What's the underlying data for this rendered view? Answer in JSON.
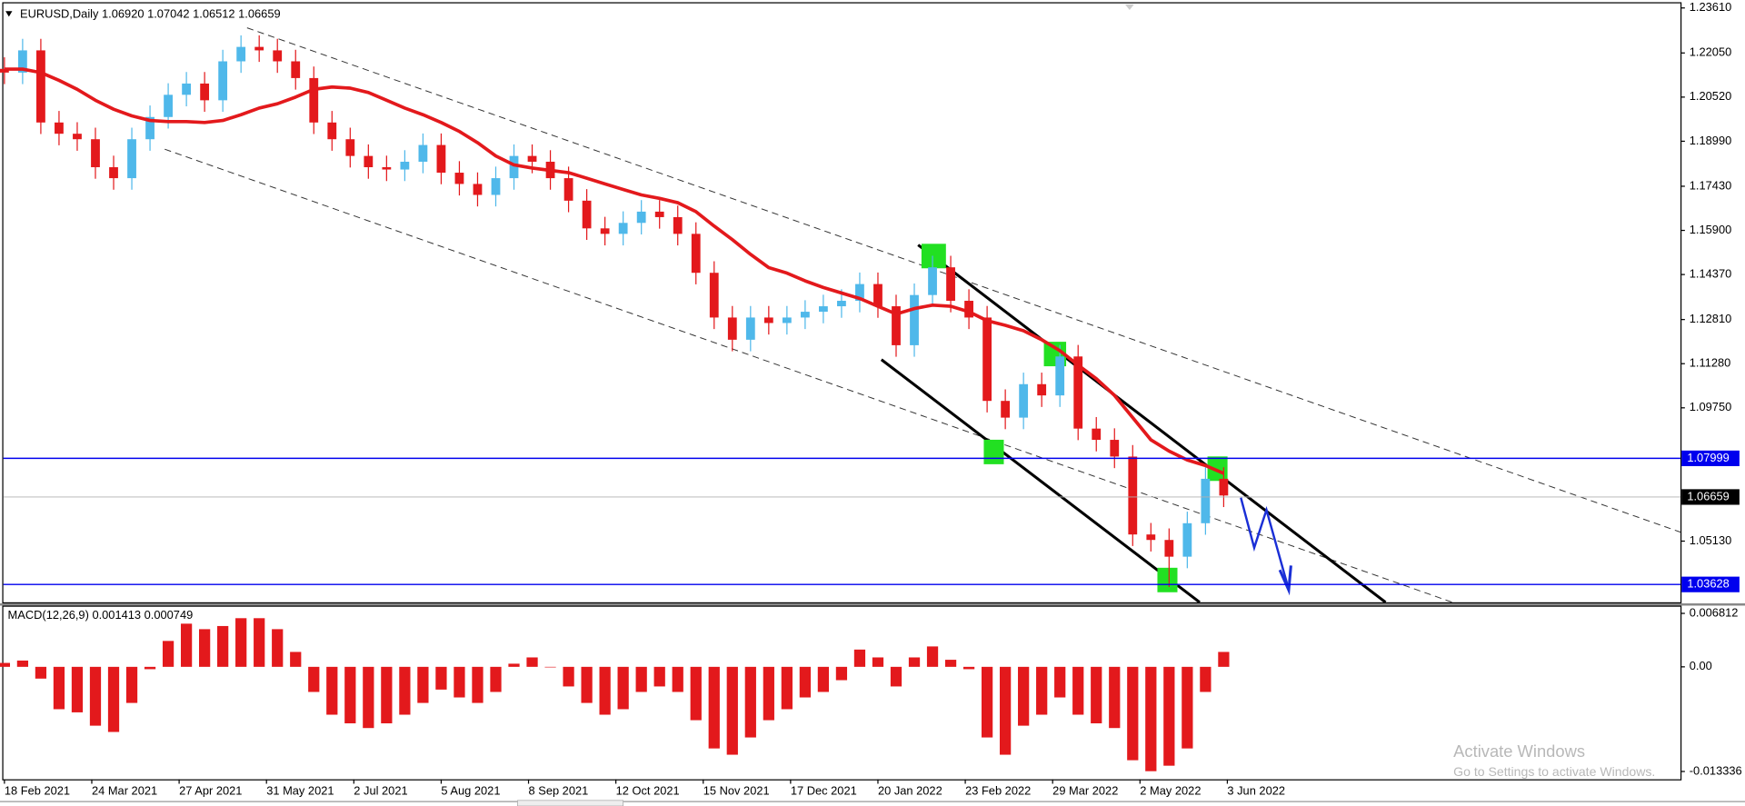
{
  "chart_data": [
    {
      "type": "candlestick",
      "title": "EURUSD,Daily  1.06920 1.07042 1.06512 1.06659",
      "x": [
        0,
        5,
        10,
        15,
        20,
        25,
        30,
        35,
        40,
        45,
        50,
        55,
        60,
        65,
        70,
        75,
        80,
        85,
        90,
        95,
        100,
        105,
        110,
        115,
        120,
        125,
        130,
        135,
        140,
        145,
        150,
        155,
        160,
        165,
        170,
        175,
        180,
        185,
        190,
        195,
        200,
        205,
        210,
        215,
        220,
        225,
        230,
        235,
        240,
        245,
        250,
        255,
        260,
        265,
        270,
        275,
        280,
        285,
        290,
        295,
        300,
        305,
        310,
        315,
        320,
        325,
        330,
        335
      ],
      "open": [
        1.215,
        1.2137,
        1.2214,
        1.1964,
        1.1925,
        1.1906,
        1.1809,
        1.1771,
        1.1906,
        1.1983,
        1.206,
        1.2099,
        1.2041,
        1.2176,
        1.2226,
        1.2214,
        1.2176,
        1.2118,
        1.1964,
        1.1906,
        1.1848,
        1.1809,
        1.1801,
        1.1828,
        1.1886,
        1.179,
        1.1751,
        1.1713,
        1.1771,
        1.1848,
        1.1828,
        1.1771,
        1.1693,
        1.1597,
        1.1578,
        1.1616,
        1.1655,
        1.1636,
        1.1578,
        1.1443,
        1.1288,
        1.1211,
        1.1288,
        1.1269,
        1.1288,
        1.1308,
        1.1327,
        1.1346,
        1.1404,
        1.1327,
        1.1192,
        1.1366,
        1.1462,
        1.1346,
        1.1288,
        1.0999,
        1.0941,
        1.1057,
        1.1018,
        1.1153,
        1.0903,
        1.0864,
        1.0806,
        1.0536,
        1.0517,
        1.0459,
        1.0575,
        1.0729
      ],
      "high": [
        1.219,
        1.2254,
        1.2254,
        1.2004,
        1.1965,
        1.1946,
        1.1849,
        1.1946,
        1.2023,
        1.21,
        1.2139,
        1.2139,
        1.2216,
        1.2266,
        1.2266,
        1.2254,
        1.2216,
        1.2158,
        1.2004,
        1.1946,
        1.1888,
        1.1849,
        1.1868,
        1.1926,
        1.1926,
        1.183,
        1.1791,
        1.1811,
        1.1888,
        1.1888,
        1.1868,
        1.1811,
        1.1733,
        1.1637,
        1.1656,
        1.1695,
        1.1695,
        1.1676,
        1.1618,
        1.1483,
        1.1328,
        1.1328,
        1.1328,
        1.1328,
        1.1348,
        1.1367,
        1.1386,
        1.1444,
        1.1444,
        1.1367,
        1.1406,
        1.1502,
        1.1502,
        1.1386,
        1.1328,
        1.1039,
        1.1097,
        1.1097,
        1.1193,
        1.1193,
        1.0943,
        1.0904,
        1.0846,
        1.0576,
        1.0557,
        1.0615,
        1.0769,
        1.0769
      ],
      "low": [
        1.2097,
        1.2097,
        1.1924,
        1.1885,
        1.1866,
        1.1769,
        1.1731,
        1.1731,
        1.1866,
        1.1943,
        1.202,
        1.2001,
        1.2001,
        1.2136,
        1.2174,
        1.2136,
        1.2078,
        1.1924,
        1.1866,
        1.1808,
        1.1769,
        1.1761,
        1.1761,
        1.1788,
        1.175,
        1.1711,
        1.1673,
        1.1673,
        1.1731,
        1.1788,
        1.1731,
        1.1653,
        1.1557,
        1.1538,
        1.1538,
        1.1576,
        1.1596,
        1.1538,
        1.1403,
        1.1248,
        1.1171,
        1.1171,
        1.1229,
        1.1229,
        1.1248,
        1.1268,
        1.1287,
        1.1306,
        1.1287,
        1.1152,
        1.1152,
        1.1326,
        1.1306,
        1.1248,
        1.0959,
        1.0901,
        1.0901,
        1.0978,
        1.0978,
        1.0863,
        1.0824,
        1.0766,
        1.0496,
        1.0477,
        1.0354,
        1.0419,
        1.0535,
        1.0631
      ],
      "close": [
        1.2137,
        1.2214,
        1.1964,
        1.1925,
        1.1906,
        1.1809,
        1.1771,
        1.1906,
        1.1983,
        1.206,
        1.2099,
        1.2041,
        1.2176,
        1.2226,
        1.2214,
        1.2176,
        1.2118,
        1.1964,
        1.1906,
        1.1848,
        1.1809,
        1.1801,
        1.1828,
        1.1886,
        1.179,
        1.1751,
        1.1713,
        1.1771,
        1.1848,
        1.1828,
        1.1771,
        1.1693,
        1.1597,
        1.1578,
        1.1616,
        1.1655,
        1.1636,
        1.1578,
        1.1443,
        1.1288,
        1.1211,
        1.1288,
        1.1269,
        1.1288,
        1.1308,
        1.1327,
        1.1346,
        1.1404,
        1.1327,
        1.1192,
        1.1366,
        1.1462,
        1.1346,
        1.1288,
        1.0999,
        1.0941,
        1.1057,
        1.1018,
        1.1153,
        1.0903,
        1.0864,
        1.0806,
        1.0536,
        1.0517,
        1.0459,
        1.0575,
        1.0729,
        1.0671
      ],
      "up_color": "#4fb8ea",
      "down_color": "#e3191c",
      "ma": {
        "color": "#e3191c",
        "values": [
          1.2149,
          1.2149,
          1.2137,
          1.211,
          1.2079,
          1.2041,
          1.201,
          1.1987,
          1.1971,
          1.1967,
          1.1967,
          1.1964,
          1.1971,
          1.1991,
          1.2014,
          1.2029,
          1.2052,
          1.2079,
          1.2087,
          1.2083,
          1.2068,
          1.2041,
          1.2014,
          1.1991,
          1.1964,
          1.1933,
          1.1894,
          1.1848,
          1.1817,
          1.1806,
          1.1798,
          1.179,
          1.1771,
          1.1751,
          1.1732,
          1.1713,
          1.1701,
          1.1686,
          1.1655,
          1.1605,
          1.1558,
          1.1507,
          1.1461,
          1.1442,
          1.1415,
          1.1392,
          1.1373,
          1.1354,
          1.1327,
          1.13,
          1.1319,
          1.1331,
          1.1327,
          1.1308,
          1.1277,
          1.1261,
          1.1242,
          1.1211,
          1.1173,
          1.1123,
          1.1076,
          1.1018,
          1.0941,
          1.0864,
          1.0825,
          1.0794,
          1.0775,
          1.0748
        ]
      },
      "xlim": [
        -0.3,
        460.5
      ],
      "ylim": [
        1.0301,
        1.2377
      ],
      "yticks": [
        {
          "value": 1.2361,
          "label": "1.23610"
        },
        {
          "value": 1.2205,
          "label": "1.22050"
        },
        {
          "value": 1.2052,
          "label": "1.20520"
        },
        {
          "value": 1.1899,
          "label": "1.18990"
        },
        {
          "value": 1.1743,
          "label": "1.17430"
        },
        {
          "value": 1.159,
          "label": "1.15900"
        },
        {
          "value": 1.1437,
          "label": "1.14370"
        },
        {
          "value": 1.1281,
          "label": "1.12810"
        },
        {
          "value": 1.1128,
          "label": "1.11280"
        },
        {
          "value": 1.0975,
          "label": "1.09750"
        },
        {
          "value": 1.0513,
          "label": "1.05130"
        }
      ],
      "xticks": [
        {
          "value": 0,
          "label": "18 Feb 2021"
        },
        {
          "value": 24,
          "label": "24 Mar 2021"
        },
        {
          "value": 48,
          "label": "27 Apr 2021"
        },
        {
          "value": 72,
          "label": "31 May 2021"
        },
        {
          "value": 96,
          "label": "2 Jul 2021"
        },
        {
          "value": 120,
          "label": "5 Aug 2021"
        },
        {
          "value": 144,
          "label": "8 Sep 2021"
        },
        {
          "value": 168,
          "label": "12 Oct 2021"
        },
        {
          "value": 192,
          "label": "15 Nov 2021"
        },
        {
          "value": 216,
          "label": "17 Dec 2021"
        },
        {
          "value": 240,
          "label": "20 Jan 2022"
        },
        {
          "value": 264,
          "label": "23 Feb 2022"
        },
        {
          "value": 288,
          "label": "29 Mar 2022"
        },
        {
          "value": 312,
          "label": "2 May 2022"
        },
        {
          "value": 336,
          "label": "3 Jun 2022"
        }
      ],
      "hlines": [
        1.07999,
        1.03628
      ],
      "hline_color": "#0000ee",
      "current_price": 1.06659
    },
    {
      "type": "bar",
      "title": "MACD(12,26,9) 0.001413 0.000749",
      "x": [
        0,
        5,
        10,
        15,
        20,
        25,
        30,
        35,
        40,
        45,
        50,
        55,
        60,
        65,
        70,
        75,
        80,
        85,
        90,
        95,
        100,
        105,
        110,
        115,
        120,
        125,
        130,
        135,
        140,
        145,
        150,
        155,
        160,
        165,
        170,
        175,
        180,
        185,
        190,
        195,
        200,
        205,
        210,
        215,
        220,
        225,
        230,
        235,
        240,
        245,
        250,
        255,
        260,
        265,
        270,
        275,
        280,
        285,
        290,
        295,
        300,
        305,
        310,
        315,
        320,
        325,
        330,
        335
      ],
      "values": [
        0.0005,
        0.0008,
        -0.0015,
        -0.0054,
        -0.0058,
        -0.0075,
        -0.0083,
        -0.0046,
        -0.0003,
        0.0033,
        0.0055,
        0.0048,
        0.0052,
        0.0062,
        0.0062,
        0.0048,
        0.0019,
        -0.0032,
        -0.0061,
        -0.0072,
        -0.0078,
        -0.0072,
        -0.0061,
        -0.0046,
        -0.0029,
        -0.0039,
        -0.0046,
        -0.0032,
        0.0004,
        0.0012,
        0,
        -0.0025,
        -0.0046,
        -0.0061,
        -0.0054,
        -0.0032,
        -0.0025,
        -0.0032,
        -0.0068,
        -0.0104,
        -0.0112,
        -0.009,
        -0.0068,
        -0.0054,
        -0.0039,
        -0.0032,
        -0.0017,
        0.0022,
        0.0012,
        -0.0025,
        0.0012,
        0.0026,
        0.0009,
        -0.0003,
        -0.009,
        -0.0112,
        -0.0075,
        -0.0061,
        -0.0039,
        -0.0061,
        -0.0072,
        -0.0078,
        -0.0119,
        -0.0133,
        -0.0126,
        -0.0104,
        -0.0032,
        0.0019
      ],
      "color": "#e3191c",
      "xlim": [
        -0.3,
        460.5
      ],
      "ylim": [
        -0.01433,
        0.00766
      ],
      "yticks": [
        0.006812,
        {
          "value": 0,
          "label": "0.00"
        },
        -0.013336
      ]
    }
  ],
  "os_overlay": {
    "title": "Activate Windows",
    "subtitle": "Go to Settings to activate Windows."
  }
}
